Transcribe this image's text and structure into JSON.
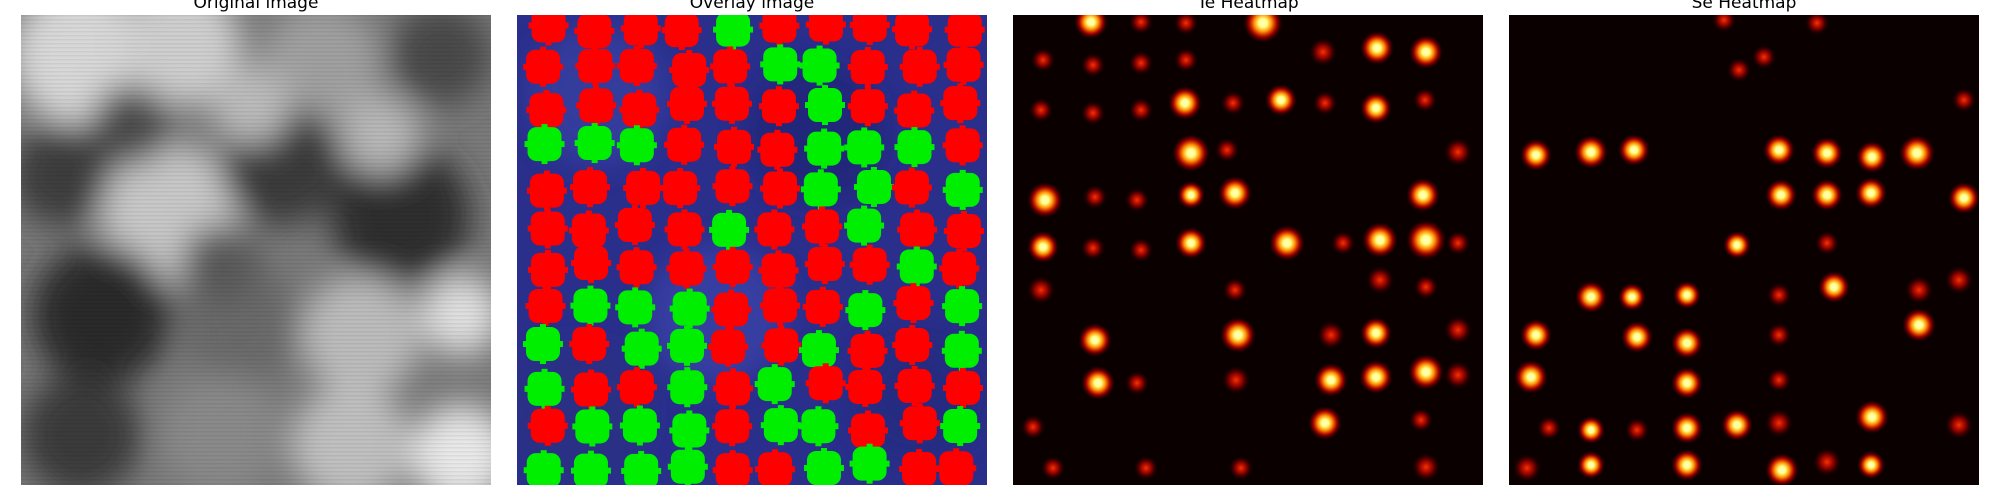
{
  "panels": [
    {
      "title": "Original image",
      "kind": "grayscale"
    },
    {
      "title": "Overlay image",
      "kind": "overlay"
    },
    {
      "title": "Te Heatmap",
      "kind": "heatmap"
    },
    {
      "title": "Se Heatmap",
      "kind": "heatmap"
    }
  ],
  "colors": {
    "overlay_background": "#2a2f8c",
    "overlay_red": "#ff0000",
    "overlay_green": "#00ee00",
    "heatmap_background": "#0b0000",
    "heatmap_hot": "#ffff80"
  }
}
